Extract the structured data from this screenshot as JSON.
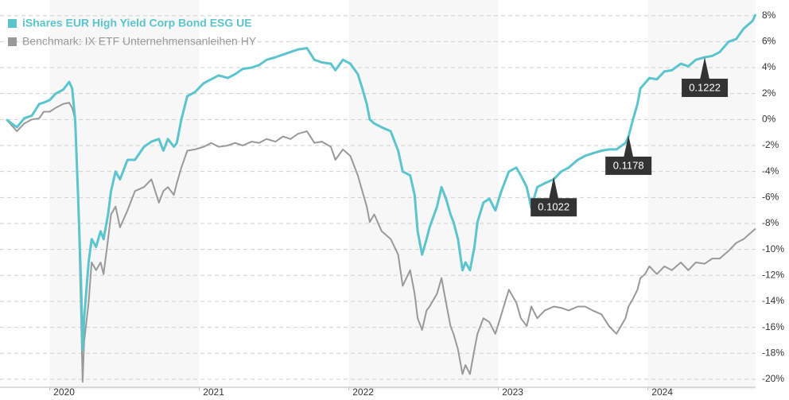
{
  "chart_data": {
    "type": "line",
    "legend": "upper left",
    "grid": true,
    "xlim": [
      2019.71,
      2024.72
    ],
    "xticks": [
      2020,
      2021,
      2022,
      2023,
      2024
    ],
    "ylim": [
      -20.8,
      8.9
    ],
    "yticks": [
      {
        "value": 8,
        "label": "8%"
      },
      {
        "value": 6,
        "label": "6%"
      },
      {
        "value": 4,
        "label": "4%"
      },
      {
        "value": 2,
        "label": "2%"
      },
      {
        "value": 0,
        "label": "0%"
      },
      {
        "value": -2,
        "label": "-2%"
      },
      {
        "value": -4,
        "label": "-4%"
      },
      {
        "value": -6,
        "label": "-6%"
      },
      {
        "value": -8,
        "label": "-8%"
      },
      {
        "value": -10,
        "label": "-10%"
      },
      {
        "value": -12,
        "label": "-12%"
      },
      {
        "value": -14,
        "label": "-14%"
      },
      {
        "value": -16,
        "label": "-16%"
      },
      {
        "value": -18,
        "label": "-18%"
      },
      {
        "value": -20,
        "label": "-20%"
      }
    ],
    "x": [
      2019.71,
      2019.78,
      2019.83,
      2019.88,
      2019.93,
      2019.96,
      2020.0,
      2020.04,
      2020.09,
      2020.13,
      2020.15,
      2020.17,
      2020.19,
      2020.21,
      2020.22,
      2020.23,
      2020.26,
      2020.28,
      2020.31,
      2020.34,
      2020.36,
      2020.39,
      2020.41,
      2020.44,
      2020.47,
      2020.52,
      2020.57,
      2020.63,
      2020.68,
      2020.73,
      2020.76,
      2020.79,
      2020.83,
      2020.85,
      2020.88,
      2020.92,
      2020.97,
      2021.03,
      2021.08,
      2021.13,
      2021.19,
      2021.24,
      2021.29,
      2021.35,
      2021.4,
      2021.45,
      2021.51,
      2021.56,
      2021.61,
      2021.66,
      2021.72,
      2021.77,
      2021.82,
      2021.88,
      2021.91,
      2021.96,
      2022.01,
      2022.06,
      2022.09,
      2022.12,
      2022.14,
      2022.17,
      2022.22,
      2022.28,
      2022.33,
      2022.36,
      2022.41,
      2022.44,
      2022.46,
      2022.49,
      2022.52,
      2022.54,
      2022.59,
      2022.62,
      2022.65,
      2022.68,
      2022.7,
      2022.73,
      2022.76,
      2022.78,
      2022.81,
      2022.84,
      2022.86,
      2022.9,
      2022.94,
      2022.98,
      2023.02,
      2023.07,
      2023.12,
      2023.15,
      2023.19,
      2023.22,
      2023.26,
      2023.31,
      2023.37,
      2023.42,
      2023.47,
      2023.53,
      2023.58,
      2023.63,
      2023.69,
      2023.74,
      2023.79,
      2023.85,
      2023.87,
      2023.9,
      2023.93,
      2023.95,
      2023.98,
      2024.01,
      2024.06,
      2024.11,
      2024.16,
      2024.22,
      2024.27,
      2024.32,
      2024.38,
      2024.43,
      2024.48,
      2024.54,
      2024.59,
      2024.64,
      2024.7,
      2024.72
    ],
    "series": [
      {
        "name": "iShares EUR High Yield Corp Bond ESG UE",
        "color": "#5bc4cc",
        "values": [
          0,
          -0.6,
          0.1,
          0.3,
          1.2,
          1.3,
          1.5,
          2.0,
          2.3,
          2.9,
          2.4,
          0,
          -6.1,
          -12.8,
          -17.7,
          -15.3,
          -11.0,
          -9.2,
          -9.8,
          -8.6,
          -9.2,
          -7.3,
          -5.5,
          -4.0,
          -4.6,
          -3.1,
          -3.1,
          -2.1,
          -1.7,
          -1.5,
          -2.4,
          -1.5,
          -2.1,
          -1.8,
          0,
          1.8,
          2.1,
          2.8,
          3.1,
          3.4,
          3.2,
          3.5,
          3.9,
          4.0,
          4.2,
          4.6,
          4.8,
          5.0,
          5.2,
          5.4,
          5.5,
          4.6,
          4.4,
          4.3,
          3.8,
          4.6,
          4.3,
          3.5,
          2.4,
          1.2,
          0,
          -0.3,
          -0.6,
          -0.9,
          -2.4,
          -4.0,
          -4.3,
          -5.8,
          -8.6,
          -10.4,
          -9.2,
          -8.3,
          -6.7,
          -5.2,
          -6.1,
          -7.3,
          -7.9,
          -9.2,
          -11.6,
          -11.0,
          -11.6,
          -9.8,
          -7.9,
          -6.4,
          -6.1,
          -7.0,
          -5.5,
          -4.0,
          -3.7,
          -4.3,
          -5.2,
          -6.8,
          -5.2,
          -4.9,
          -4.6,
          -4.0,
          -3.7,
          -3.1,
          -2.8,
          -2.6,
          -2.4,
          -2.3,
          -2.3,
          -1.8,
          -1.3,
          0,
          1.2,
          2.4,
          2.8,
          3.2,
          3.1,
          3.7,
          3.8,
          4.3,
          4.1,
          4.6,
          4.8,
          4.9,
          5.2,
          6.0,
          6.2,
          7.0,
          7.6,
          8.1
        ]
      },
      {
        "name": "Benchmark: IX ETF Unternehmensanleihen HY",
        "color": "#999999",
        "values": [
          0,
          -0.9,
          -0.3,
          0,
          0.1,
          0.6,
          0.6,
          0.9,
          1.2,
          1.3,
          0.9,
          0,
          -6.1,
          -15.3,
          -20.2,
          -17.1,
          -14.1,
          -11.0,
          -11.6,
          -11.0,
          -11.9,
          -9.2,
          -7.3,
          -6.7,
          -8.3,
          -7.0,
          -5.5,
          -5.2,
          -4.6,
          -6.4,
          -5.5,
          -5.2,
          -5.8,
          -4.9,
          -3.7,
          -2.4,
          -2.3,
          -2.1,
          -1.8,
          -2.1,
          -2.0,
          -1.8,
          -2.0,
          -1.7,
          -1.8,
          -1.5,
          -1.7,
          -1.3,
          -1.5,
          -1.1,
          -0.9,
          -1.8,
          -1.7,
          -2.1,
          -3.1,
          -2.3,
          -2.8,
          -4.3,
          -5.5,
          -6.7,
          -7.9,
          -7.3,
          -8.6,
          -9.2,
          -10.4,
          -12.8,
          -11.6,
          -13.4,
          -15.3,
          -16.2,
          -14.7,
          -14.4,
          -13.4,
          -12.2,
          -14.1,
          -15.9,
          -16.5,
          -17.7,
          -19.6,
          -18.9,
          -19.6,
          -17.7,
          -16.5,
          -15.3,
          -15.6,
          -16.5,
          -15.0,
          -13.1,
          -14.1,
          -15.3,
          -15.9,
          -14.4,
          -15.3,
          -14.7,
          -14.4,
          -14.5,
          -14.7,
          -14.4,
          -14.4,
          -14.7,
          -15.0,
          -15.9,
          -16.5,
          -15.3,
          -14.4,
          -13.8,
          -13.1,
          -12.2,
          -11.9,
          -11.3,
          -11.9,
          -11.3,
          -11.6,
          -11.0,
          -11.6,
          -11.0,
          -11.1,
          -10.7,
          -10.7,
          -10.1,
          -9.5,
          -9.2,
          -8.6,
          -8.4
        ]
      }
    ],
    "annotations": [
      {
        "x": 2023.37,
        "y": -4.4,
        "label": "0.1022"
      },
      {
        "x": 2023.87,
        "y": -1.2,
        "label": "0.1178"
      },
      {
        "x": 2024.38,
        "y": 4.8,
        "label": "0.1222"
      }
    ]
  }
}
